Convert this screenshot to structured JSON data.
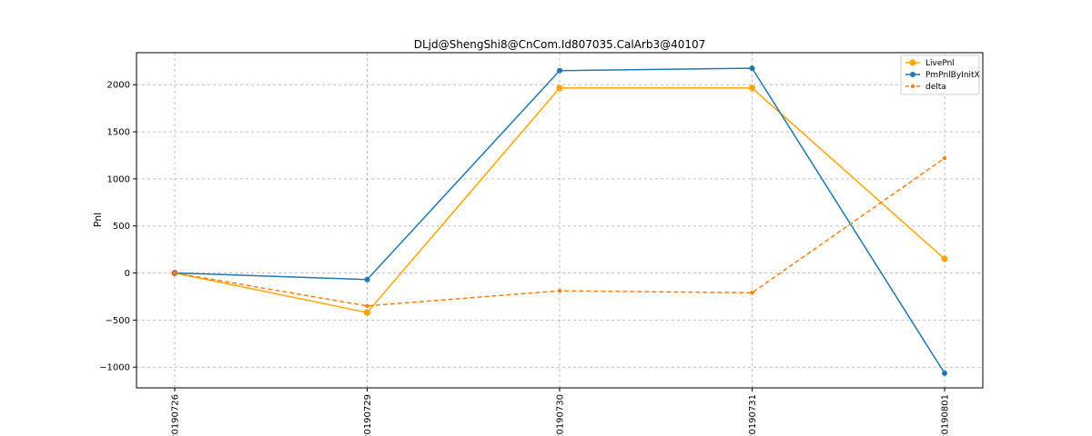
{
  "chart_data": {
    "type": "line",
    "title": "DLjd@ShengShi8@CnCom.Id807035.CalArb3@40107",
    "xlabel": "",
    "ylabel": "Pnl",
    "categories": [
      "20190726",
      "20190729",
      "20190730",
      "20190731",
      "20190801"
    ],
    "ylim": [
      -1220,
      2340
    ],
    "yticks": [
      -1000,
      -500,
      0,
      500,
      1000,
      1500,
      2000
    ],
    "grid": true,
    "legend_position": "top-right",
    "series": [
      {
        "name": "LivePnl",
        "values": [
          0,
          -420,
          1965,
          1965,
          150
        ],
        "color": "#ffa500",
        "style": "solid",
        "marker": "large-circle"
      },
      {
        "name": "PmPnlByInitX",
        "values": [
          0,
          -70,
          2150,
          2175,
          -1065
        ],
        "color": "#1f77b4",
        "style": "solid",
        "marker": "circle"
      },
      {
        "name": "delta",
        "values": [
          0,
          -350,
          -190,
          -210,
          1220
        ],
        "color": "#ff7f0e",
        "style": "dashed",
        "marker": "small-circle"
      }
    ]
  }
}
